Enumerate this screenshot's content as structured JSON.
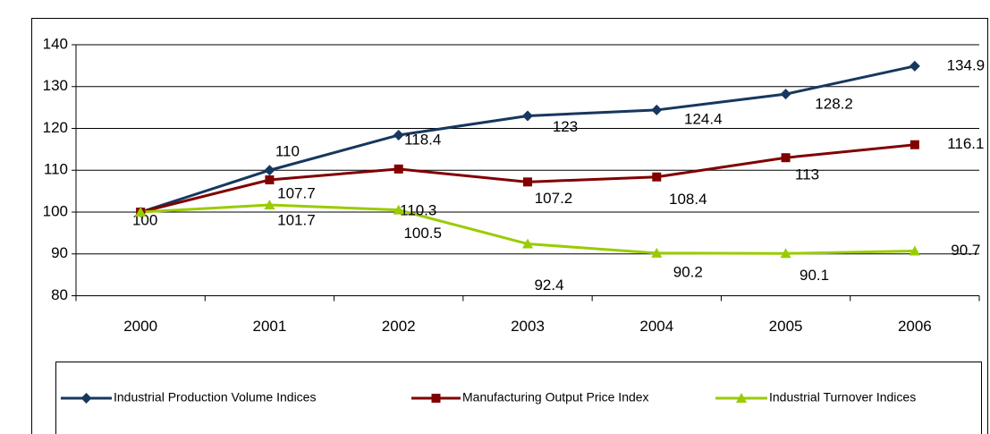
{
  "chart_data": {
    "type": "line",
    "categories": [
      "2000",
      "2001",
      "2002",
      "2003",
      "2004",
      "2005",
      "2006"
    ],
    "series": [
      {
        "name": "Industrial Production Volume Indices",
        "color": "#17375e",
        "marker": "diamond",
        "values": [
          100,
          110,
          118.4,
          123,
          124.4,
          128.2,
          134.9
        ]
      },
      {
        "name": "Manufacturing Output Price Index",
        "color": "#800000",
        "marker": "square",
        "values": [
          100,
          107.7,
          110.3,
          107.2,
          108.4,
          113,
          116.1
        ]
      },
      {
        "name": "Industrial Turnover Indices",
        "color": "#99cc00",
        "marker": "triangle",
        "values": [
          100,
          101.7,
          100.5,
          92.4,
          90.2,
          90.1,
          90.7
        ]
      }
    ],
    "ylim": [
      80,
      140
    ],
    "yticks": [
      80,
      90,
      100,
      110,
      120,
      130,
      140
    ],
    "grid": true,
    "legend": "bottom"
  }
}
